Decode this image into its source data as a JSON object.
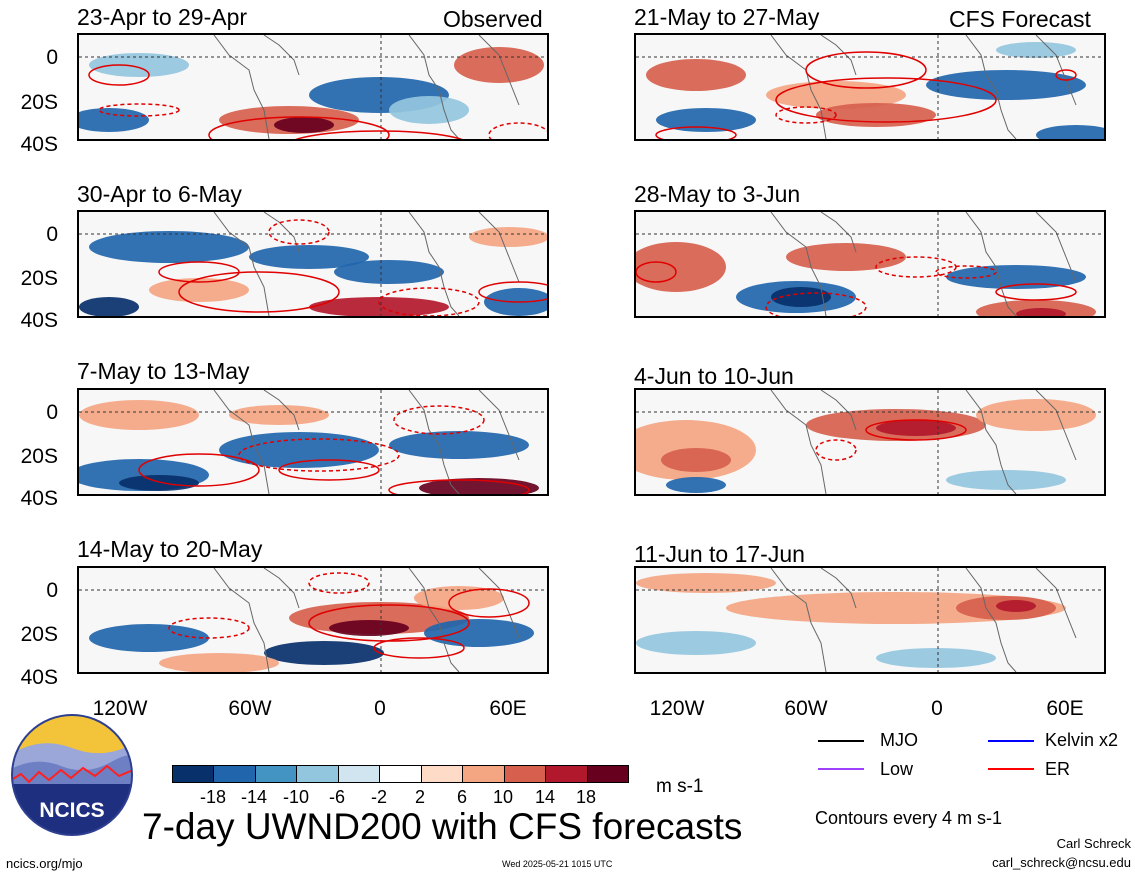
{
  "main_title": "7-day UWND200 with CFS forecasts",
  "observed_label": "Observed",
  "forecast_label": "CFS Forecast",
  "units": "m s-1",
  "contour_note": "Contours every 4 m s-1",
  "author": "Carl Schreck",
  "email": "carl_schreck@ncsu.edu",
  "site": "ncics.org/mjo",
  "timestamp": "Wed 2025-05-21 1015 UTC",
  "logo_text": "NCICS",
  "legend": [
    {
      "label": "MJO",
      "color": "#000000"
    },
    {
      "label": "Kelvin x2",
      "color": "#0000ff"
    },
    {
      "label": "Low",
      "color": "#a040ff"
    },
    {
      "label": "ER",
      "color": "#ff0000"
    }
  ],
  "colorbar": {
    "ticks": [
      "-18",
      "-14",
      "-10",
      "-6",
      "-2",
      "2",
      "6",
      "10",
      "14",
      "18"
    ],
    "colors": [
      "#08306b",
      "#2166ac",
      "#4393c3",
      "#92c5de",
      "#d1e5f0",
      "#ffffff",
      "#fddbc7",
      "#f4a582",
      "#d6604d",
      "#b2182b",
      "#67001f"
    ]
  },
  "chart_data": {
    "type": "heatmap",
    "variable": "UWND200",
    "units": "m s-1",
    "ylabels": [
      "0",
      "20S",
      "40S"
    ],
    "xlabels": [
      "120W",
      "60W",
      "0",
      "60E"
    ],
    "panels": [
      {
        "title": "23-Apr to 29-Apr",
        "kind": "Observed"
      },
      {
        "title": "30-Apr to 6-May",
        "kind": "Observed"
      },
      {
        "title": "7-May to 13-May",
        "kind": "Observed"
      },
      {
        "title": "14-May to 20-May",
        "kind": "Observed"
      },
      {
        "title": "21-May to 27-May",
        "kind": "CFS Forecast"
      },
      {
        "title": "28-May to 3-Jun",
        "kind": "CFS Forecast"
      },
      {
        "title": "4-Jun to 10-Jun",
        "kind": "CFS Forecast"
      },
      {
        "title": "11-Jun to 17-Jun",
        "kind": "CFS Forecast"
      }
    ]
  }
}
